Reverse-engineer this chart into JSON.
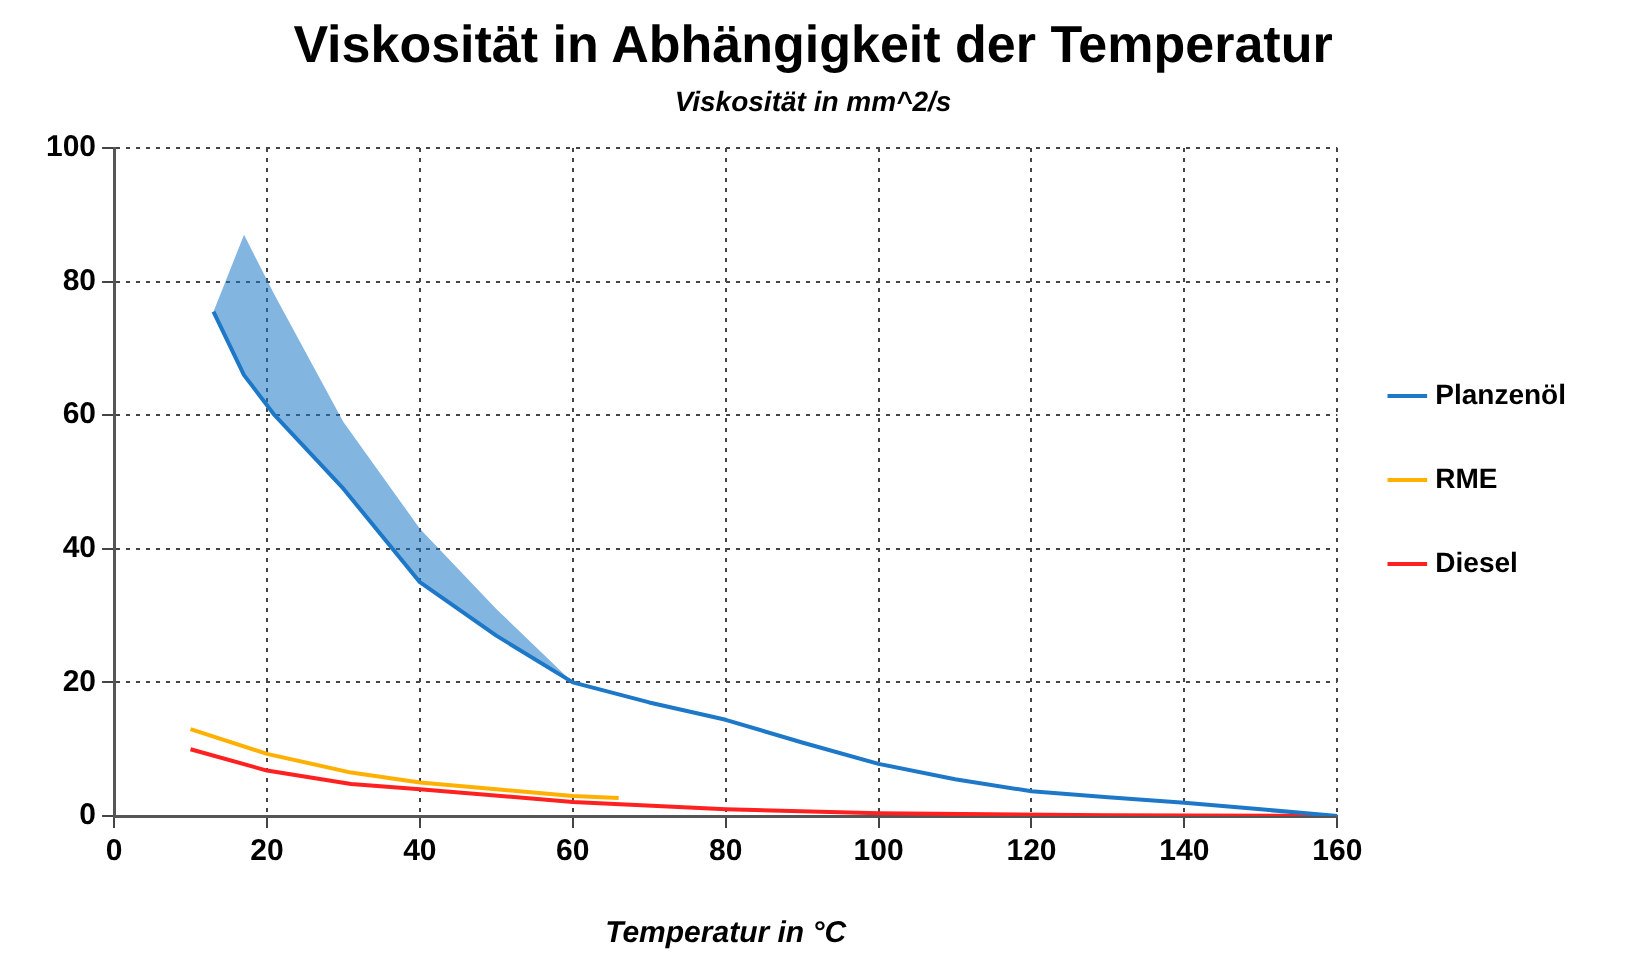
{
  "chart_data": {
    "type": "line",
    "title": "Viskosität in Abhängigkeit der Temperatur",
    "subtitle": "Viskosität in mm^2/s",
    "xlabel": "Temperatur in °C",
    "xlim": [
      0,
      160
    ],
    "xticks": [
      0,
      20,
      40,
      60,
      80,
      100,
      120,
      140,
      160
    ],
    "ylim": [
      0,
      100
    ],
    "yticks": [
      0,
      20,
      40,
      60,
      80,
      100
    ],
    "grid": true,
    "legend": "right",
    "marker": "none",
    "line_style": "solid",
    "series": [
      {
        "name": "Planzenöl",
        "color": "#1e78c8",
        "x": [
          13,
          17,
          21,
          30,
          40,
          50,
          60,
          70,
          80,
          90,
          100,
          110,
          120,
          130,
          140,
          150,
          160
        ],
        "values": [
          75.5,
          66,
          60,
          49,
          35,
          27,
          20,
          17,
          14.4,
          11,
          7.8,
          5.5,
          3.7,
          2.8,
          2,
          1,
          0
        ],
        "lower": [
          75.5,
          66,
          60,
          49,
          35,
          27,
          20,
          17,
          14.4,
          11,
          7.8,
          5.5,
          3.7,
          2.8,
          2,
          1,
          0
        ],
        "upper": [
          75.5,
          87,
          78,
          59,
          43,
          31,
          20,
          17,
          14.4,
          11,
          7.8,
          5.5,
          3.7,
          2.8,
          2,
          1,
          0
        ]
      },
      {
        "name": "RME",
        "color": "#ffb000",
        "x": [
          10,
          20,
          31,
          40,
          50,
          60,
          66
        ],
        "values": [
          13,
          9.3,
          6.5,
          5,
          4,
          3,
          2.7
        ]
      },
      {
        "name": "Diesel",
        "color": "#ff2020",
        "x": [
          10,
          20,
          31,
          40,
          60,
          80,
          100,
          130,
          160
        ],
        "values": [
          10,
          6.8,
          4.8,
          4,
          2.1,
          1,
          0.4,
          0.1,
          0
        ]
      }
    ]
  }
}
